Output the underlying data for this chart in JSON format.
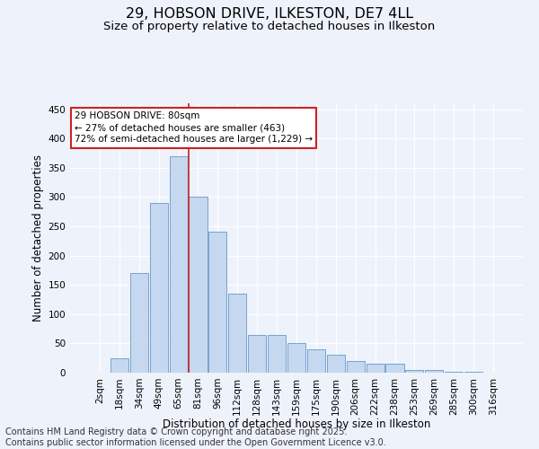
{
  "title": "29, HOBSON DRIVE, ILKESTON, DE7 4LL",
  "subtitle": "Size of property relative to detached houses in Ilkeston",
  "xlabel": "Distribution of detached houses by size in Ilkeston",
  "ylabel": "Number of detached properties",
  "categories": [
    "2sqm",
    "18sqm",
    "34sqm",
    "49sqm",
    "65sqm",
    "81sqm",
    "96sqm",
    "112sqm",
    "128sqm",
    "143sqm",
    "159sqm",
    "175sqm",
    "190sqm",
    "206sqm",
    "222sqm",
    "238sqm",
    "253sqm",
    "269sqm",
    "285sqm",
    "300sqm",
    "316sqm"
  ],
  "values": [
    0,
    25,
    170,
    290,
    370,
    300,
    240,
    135,
    65,
    65,
    50,
    40,
    30,
    20,
    15,
    15,
    5,
    5,
    2,
    2,
    0
  ],
  "bar_color": "#c5d8ef",
  "bar_edge_color": "#6699cc",
  "background_color": "#eef2fb",
  "grid_color": "#ffffff",
  "vline_color": "#cc2222",
  "vline_position": 4.5,
  "annotation_text": "29 HOBSON DRIVE: 80sqm\n← 27% of detached houses are smaller (463)\n72% of semi-detached houses are larger (1,229) →",
  "annotation_box_facecolor": "#ffffff",
  "annotation_box_edgecolor": "#cc2222",
  "footer_line1": "Contains HM Land Registry data © Crown copyright and database right 2025.",
  "footer_line2": "Contains public sector information licensed under the Open Government Licence v3.0.",
  "ylim": [
    0,
    460
  ],
  "yticks": [
    0,
    50,
    100,
    150,
    200,
    250,
    300,
    350,
    400,
    450
  ],
  "title_fontsize": 11.5,
  "subtitle_fontsize": 9.5,
  "xlabel_fontsize": 8.5,
  "ylabel_fontsize": 8.5,
  "tick_fontsize": 7.5,
  "footer_fontsize": 7,
  "annot_fontsize": 7.5
}
